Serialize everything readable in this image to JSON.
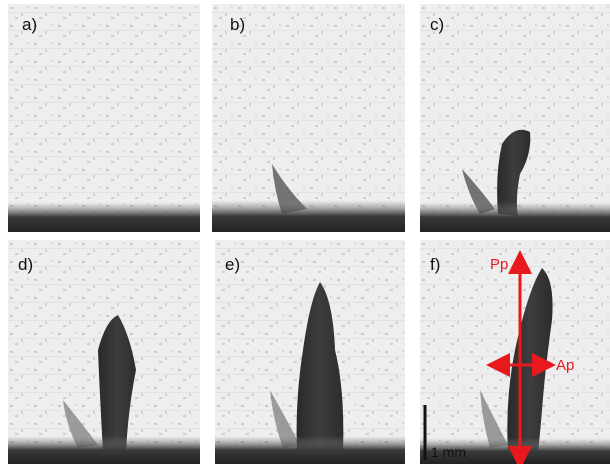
{
  "panels": [
    {
      "label": "a)"
    },
    {
      "label": "b)"
    },
    {
      "label": "c)"
    },
    {
      "label": "d)"
    },
    {
      "label": "e)"
    },
    {
      "label": "f)"
    }
  ],
  "annotations": {
    "vertical_arrow": "Pp",
    "horizontal_arrow": "Ap",
    "scale_bar": "1 mm"
  }
}
